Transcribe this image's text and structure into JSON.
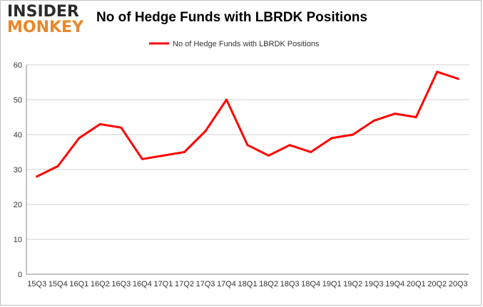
{
  "logo": {
    "line1": "INSIDER",
    "line2": "MONKEY"
  },
  "chart_data": {
    "type": "line",
    "title": "No of Hedge Funds with LBRDK Positions",
    "categories": [
      "15Q3",
      "15Q4",
      "16Q1",
      "16Q2",
      "16Q3",
      "16Q4",
      "17Q1",
      "17Q2",
      "17Q3",
      "17Q4",
      "18Q1",
      "18Q2",
      "18Q3",
      "18Q4",
      "19Q1",
      "19Q2",
      "19Q3",
      "19Q4",
      "20Q1",
      "20Q2",
      "20Q3"
    ],
    "series": [
      {
        "name": "No of Hedge Funds with LBRDK Positions",
        "color": "#ff0000",
        "values": [
          28,
          31,
          39,
          43,
          42,
          33,
          34,
          35,
          41,
          50,
          37,
          34,
          37,
          35,
          39,
          40,
          44,
          46,
          45,
          58,
          56
        ]
      }
    ],
    "ylim": [
      0,
      60
    ],
    "yticks": [
      0,
      10,
      20,
      30,
      40,
      50,
      60
    ],
    "grid": true,
    "legend": "top-center",
    "xlabel": "",
    "ylabel": ""
  }
}
